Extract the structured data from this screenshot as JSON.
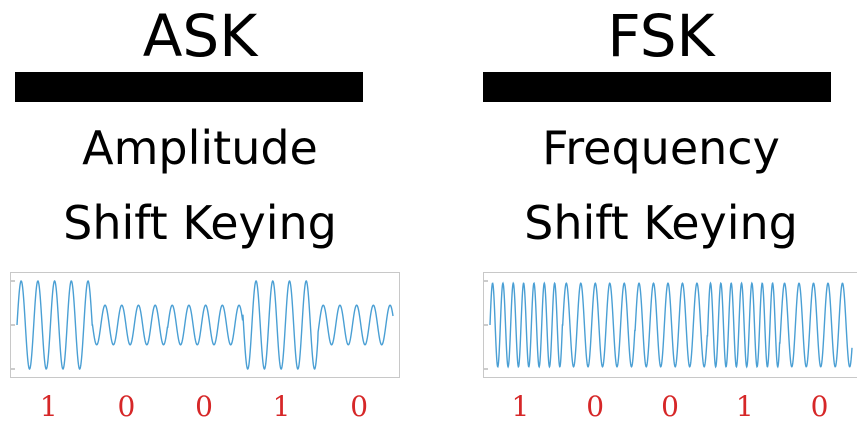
{
  "panels": [
    {
      "title": "ASK",
      "subtitle_line1": "Amplitude",
      "subtitle_line2": "Shift Keying",
      "bits": [
        "1",
        "0",
        "0",
        "1",
        "0"
      ]
    },
    {
      "title": "FSK",
      "subtitle_line1": "Frequency",
      "subtitle_line2": "Shift Keying",
      "bits": [
        "1",
        "0",
        "0",
        "1",
        "0"
      ]
    }
  ],
  "colors": {
    "wave": "#4a9fd4",
    "bits": "#d62728",
    "bar": "#000000"
  }
}
